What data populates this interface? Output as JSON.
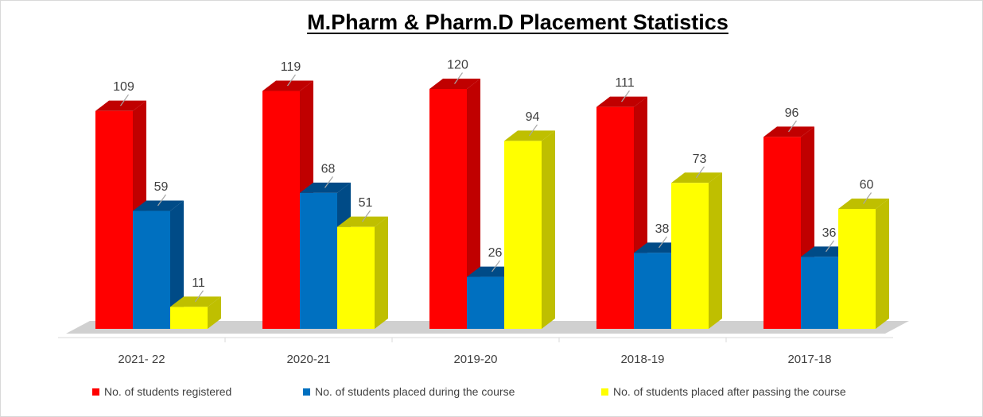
{
  "chart_data": {
    "type": "bar",
    "title": "M.Pharm & Pharm.D Placement Statistics",
    "categories": [
      "2021- 22",
      "2020-21",
      "2019-20",
      "2018-19",
      "2017-18"
    ],
    "series": [
      {
        "name": "No. of students registered",
        "color": "#ff0000",
        "side_color": "#c00000",
        "values": [
          109,
          119,
          120,
          111,
          96
        ]
      },
      {
        "name": "No. of students placed during the course",
        "color": "#0070c0",
        "side_color": "#004b87",
        "values": [
          59,
          68,
          26,
          38,
          36
        ]
      },
      {
        "name": "No. of students placed after passing the course",
        "color": "#ffff00",
        "side_color": "#bfbf00",
        "values": [
          11,
          51,
          94,
          73,
          60
        ]
      }
    ],
    "ylim": [
      0,
      120
    ],
    "grid": false,
    "legend_position": "bottom",
    "data_labels": true
  }
}
